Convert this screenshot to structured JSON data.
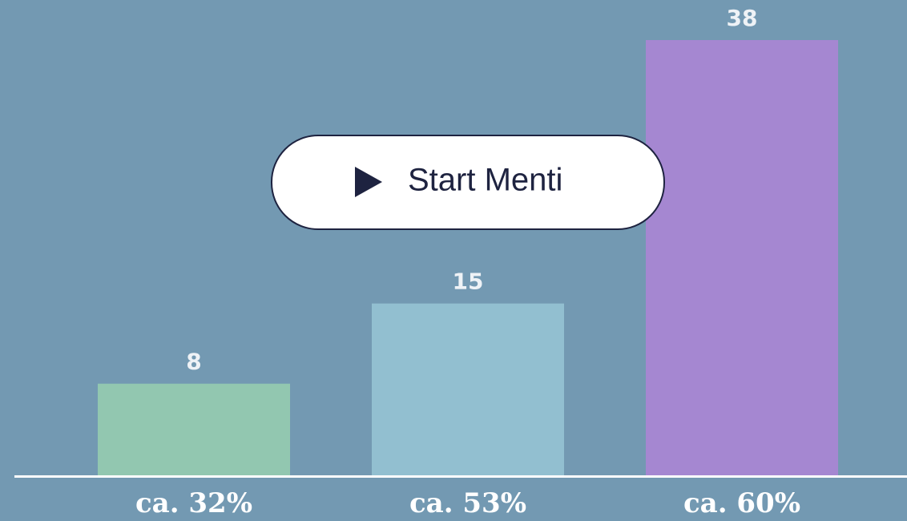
{
  "chart_data": {
    "type": "bar",
    "categories": [
      "ca. 32%",
      "ca. 53%",
      "ca. 60%"
    ],
    "values": [
      8,
      15,
      38
    ],
    "colors": [
      "#92c7b0",
      "#92bfd0",
      "#a587d1"
    ],
    "ylim": [
      0,
      38
    ]
  },
  "button": {
    "label": "Start Menti"
  }
}
